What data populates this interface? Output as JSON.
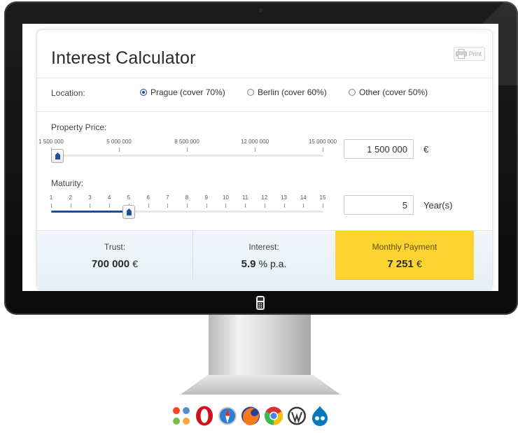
{
  "calculator": {
    "title": "Interest Calculator",
    "print_label": "Print",
    "location": {
      "label": "Location:",
      "options": [
        {
          "label": "Prague (cover 70%)",
          "selected": true
        },
        {
          "label": "Berlin (cover 60%)",
          "selected": false
        },
        {
          "label": "Other (cover 50%)",
          "selected": false
        }
      ]
    },
    "property_price": {
      "label": "Property Price:",
      "ticks": [
        "1 500 000",
        "5 000 000",
        "8 500 000",
        "12 000 000",
        "15 000 000"
      ],
      "value": "1 500 000",
      "unit": "€",
      "slider_fraction": 0.0
    },
    "maturity": {
      "label": "Maturity:",
      "ticks": [
        "1",
        "2",
        "3",
        "4",
        "5",
        "6",
        "7",
        "8",
        "9",
        "10",
        "11",
        "12",
        "13",
        "14",
        "15"
      ],
      "value": "5",
      "unit": "Year(s)",
      "slider_fraction": 0.2857
    },
    "results": {
      "trust": {
        "label": "Trust:",
        "value": "700 000",
        "unit": "€"
      },
      "interest": {
        "label": "Interest:",
        "value": "5.9",
        "unit": "% p.a."
      },
      "monthly_payment": {
        "label": "Monthly Payment",
        "value": "7 251",
        "unit": "€"
      }
    }
  },
  "platform_logos": [
    "joomla-icon",
    "opera-icon",
    "safari-icon",
    "firefox-icon",
    "chrome-icon",
    "wordpress-icon",
    "drupal-icon"
  ],
  "colors": {
    "accent_blue": "#1e4f9c",
    "highlight_yellow": "#fbd432",
    "results_bg": "#e9f0f8"
  }
}
